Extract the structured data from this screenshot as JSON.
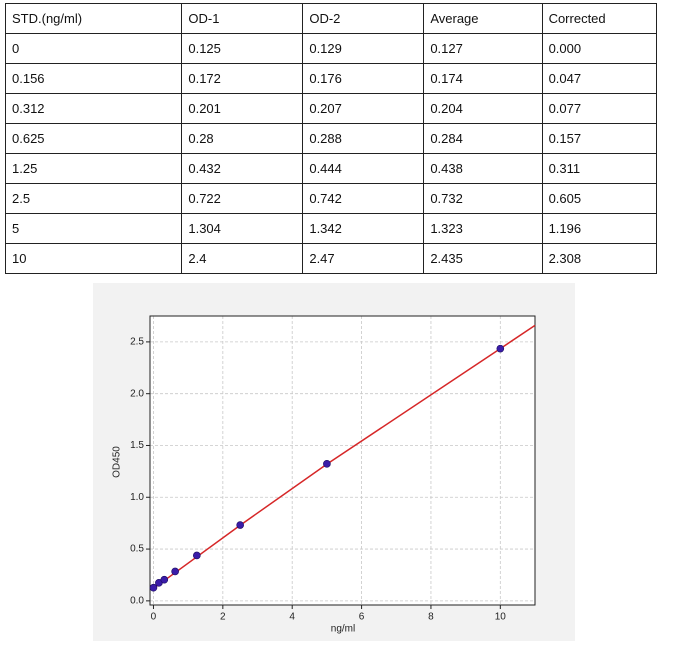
{
  "table": {
    "header": [
      "STD.(ng/ml)",
      "OD-1",
      "OD-2",
      "Average",
      "Corrected"
    ],
    "rows": [
      [
        "0",
        "0.125",
        "0.129",
        "0.127",
        "0.000"
      ],
      [
        "0.156",
        "0.172",
        "0.176",
        "0.174",
        "0.047"
      ],
      [
        "0.312",
        "0.201",
        "0.207",
        "0.204",
        "0.077"
      ],
      [
        "0.625",
        "0.28",
        "0.288",
        "0.284",
        "0.157"
      ],
      [
        "1.25",
        "0.432",
        "0.444",
        "0.438",
        "0.311"
      ],
      [
        "2.5",
        "0.722",
        "0.742",
        "0.732",
        "0.605"
      ],
      [
        "5",
        "1.304",
        "1.342",
        "1.323",
        "1.196"
      ],
      [
        "10",
        "2.4",
        "2.47",
        "2.435",
        "2.308"
      ]
    ]
  },
  "chart_data": {
    "type": "scatter",
    "x_label": "ng/ml",
    "y_label": "OD450",
    "xlim": [
      -0.1,
      11
    ],
    "ylim": [
      -0.04,
      2.75
    ],
    "xticks": [
      0,
      2,
      4,
      6,
      8,
      10
    ],
    "yticks": [
      {
        "value": 0,
        "label": "0.0"
      },
      0.5,
      {
        "value": 1,
        "label": "1.0"
      },
      1.5,
      {
        "value": 2,
        "label": "2.0"
      },
      2.5
    ],
    "grid": true,
    "series": [
      {
        "style": "line",
        "color": "#d62728",
        "x": [
          0,
          2.5,
          5,
          10,
          11
        ],
        "values": [
          0.12,
          0.73,
          1.32,
          2.435,
          2.66
        ]
      },
      {
        "style": "markers",
        "color": "#3a1ca8",
        "x": [
          0,
          0.156,
          0.312,
          0.625,
          1.25,
          2.5,
          5,
          10
        ],
        "values": [
          0.127,
          0.174,
          0.204,
          0.284,
          0.438,
          0.732,
          1.323,
          2.435
        ]
      }
    ]
  }
}
